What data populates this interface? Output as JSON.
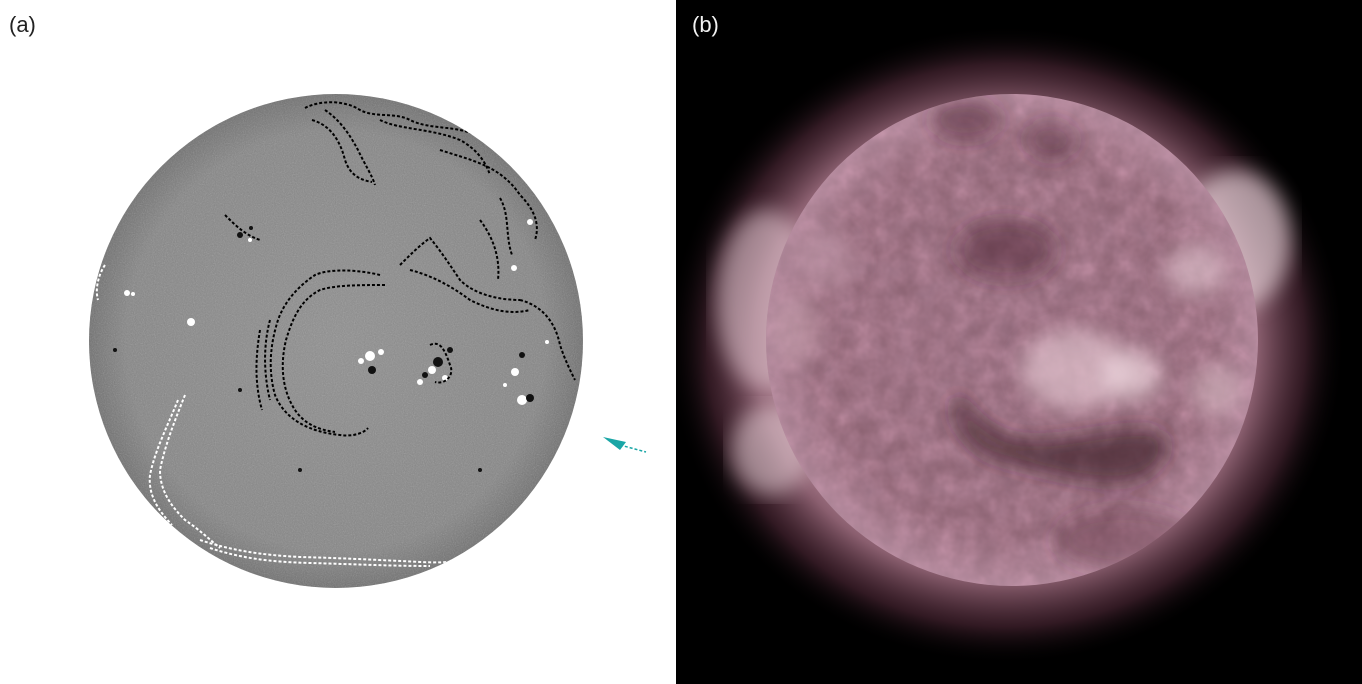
{
  "figure": {
    "panel_a": {
      "label": "(a)",
      "image": "magnetogram-solar-disk",
      "overlay_contour_color_dark": "#000000",
      "overlay_contour_color_light": "#ffffff",
      "arrow_color": "#1aa6a6",
      "disk_color": "#8a8a8a"
    },
    "panel_b": {
      "label": "(b)",
      "image": "euv-solar-disk-corona",
      "disk_color": "#8a6170",
      "corona_color": "#c99aa8",
      "background_color": "#000000"
    }
  }
}
